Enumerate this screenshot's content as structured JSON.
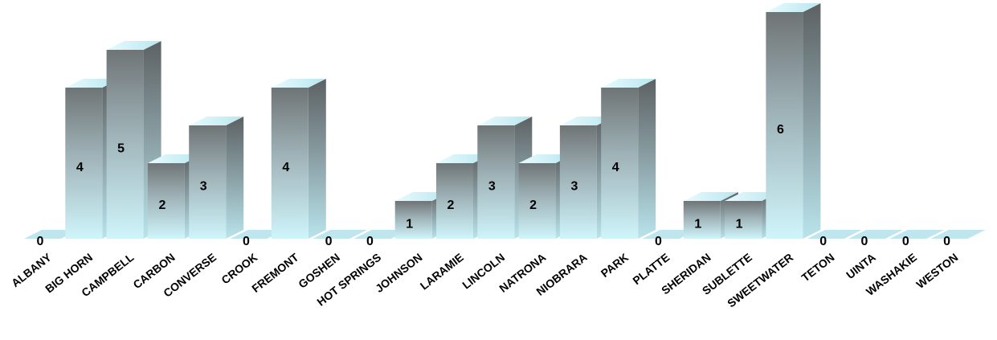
{
  "chart_data": {
    "type": "bar",
    "title": "",
    "xlabel": "",
    "ylabel": "",
    "ylim": [
      0,
      6
    ],
    "grid": false,
    "categories": [
      "ALBANY",
      "BIG HORN",
      "CAMPBELL",
      "CARBON",
      "CONVERSE",
      "CROOK",
      "FREMONT",
      "GOSHEN",
      "HOT SPRINGS",
      "JOHNSON",
      "LARAMIE",
      "LINCOLN",
      "NATRONA",
      "NIOBRARA",
      "PARK",
      "PLATTE",
      "SHERIDAN",
      "SUBLETTE",
      "SWEETWATER",
      "TETON",
      "UINTA",
      "WASHAKIE",
      "WESTON"
    ],
    "values": [
      0,
      4,
      5,
      2,
      3,
      0,
      4,
      0,
      0,
      1,
      2,
      3,
      2,
      3,
      4,
      0,
      1,
      1,
      6,
      0,
      0,
      0,
      0
    ]
  },
  "colors": {
    "bar_top": "#cff3f8",
    "bar_bottom": "#cdf4fb",
    "bar_mid": "#8e9ea2",
    "bar_dark": "#707476",
    "side_dark": "#5f6466",
    "floor": "#bfe6ee"
  }
}
